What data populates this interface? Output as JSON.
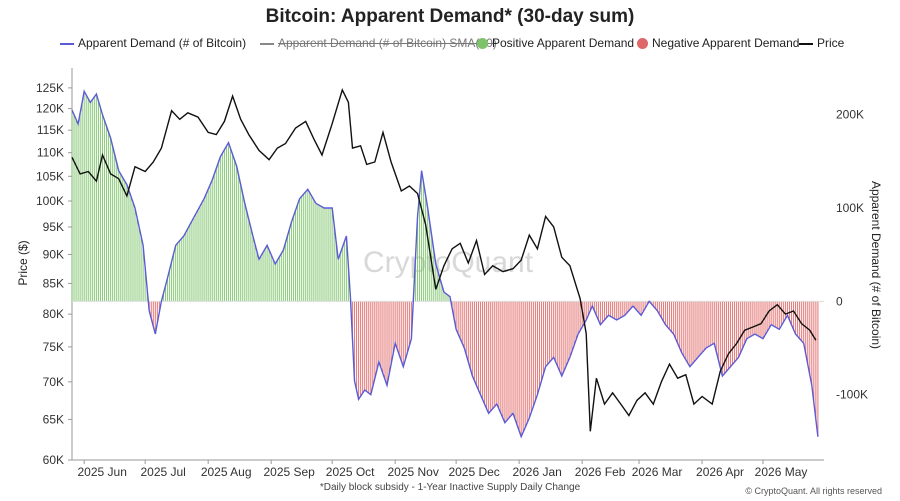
{
  "chart_data": {
    "type": "line",
    "title": "Bitcoin: Apparent Demand* (30-day sum)",
    "footnote": "*Daily block subsidy - 1-Year Inactive Supply Daily Change",
    "copyright": "© CryptoQuant. All rights reserved",
    "watermark": "CryptoQuant",
    "legend": [
      {
        "label": "Apparent Demand (# of Bitcoin)",
        "color": "#5b5bd6",
        "style": "line"
      },
      {
        "label": "Apparent Demand (# of Bitcoin) SMA(30)",
        "color": "#888888",
        "style": "line-disabled"
      },
      {
        "label": "Positive Apparent Demand",
        "color": "#7cc36a",
        "style": "dot"
      },
      {
        "label": "Negative Apparent Demand",
        "color": "#e06767",
        "style": "dot"
      },
      {
        "label": "Price",
        "color": "#111111",
        "style": "line"
      }
    ],
    "left_axis": {
      "label": "Price ($)",
      "scale": "log",
      "range": [
        60000,
        130000
      ],
      "ticks": [
        60000,
        65000,
        70000,
        75000,
        80000,
        85000,
        90000,
        95000,
        100000,
        105000,
        110000,
        115000,
        120000,
        125000
      ],
      "tick_labels": [
        "60K",
        "65K",
        "70K",
        "75K",
        "80K",
        "85K",
        "90K",
        "95K",
        "100K",
        "105K",
        "110K",
        "115K",
        "120K",
        "125K"
      ]
    },
    "right_axis": {
      "label": "Apparent Demand (# of Bitcoin)",
      "range": [
        -170000,
        250000
      ],
      "ticks": [
        -100000,
        0,
        100000,
        200000
      ],
      "tick_labels": [
        "-100K",
        "0",
        "100K",
        "200K"
      ]
    },
    "x_axis": {
      "range": [
        "2025-05-26",
        "2026-05-31"
      ],
      "ticks": [
        "2025-06-01",
        "2025-07-01",
        "2025-08-01",
        "2025-09-01",
        "2025-10-01",
        "2025-11-01",
        "2025-12-01",
        "2026-01-01",
        "2026-02-01",
        "2026-03-01",
        "2026-04-01",
        "2026-05-01"
      ],
      "tick_labels": [
        "2025 Jun",
        "2025 Jul",
        "2025 Aug",
        "2025 Sep",
        "2025 Oct",
        "2025 Nov",
        "2025 Dec",
        "2026 Jan",
        "2026 Feb",
        "2026 Mar",
        "2026 Apr",
        "2026 May"
      ]
    },
    "series": [
      {
        "name": "Price",
        "axis": "left",
        "color": "#111111",
        "points": [
          [
            "2025-05-26",
            109000
          ],
          [
            "2025-05-30",
            105500
          ],
          [
            "2025-06-03",
            106000
          ],
          [
            "2025-06-07",
            104000
          ],
          [
            "2025-06-10",
            109500
          ],
          [
            "2025-06-14",
            105500
          ],
          [
            "2025-06-18",
            104500
          ],
          [
            "2025-06-22",
            101000
          ],
          [
            "2025-06-26",
            107000
          ],
          [
            "2025-07-01",
            106000
          ],
          [
            "2025-07-05",
            108000
          ],
          [
            "2025-07-09",
            111000
          ],
          [
            "2025-07-14",
            119500
          ],
          [
            "2025-07-18",
            117500
          ],
          [
            "2025-07-22",
            119000
          ],
          [
            "2025-07-27",
            118000
          ],
          [
            "2025-08-01",
            114500
          ],
          [
            "2025-08-05",
            114000
          ],
          [
            "2025-08-09",
            117000
          ],
          [
            "2025-08-13",
            123000
          ],
          [
            "2025-08-17",
            117500
          ],
          [
            "2025-08-21",
            114000
          ],
          [
            "2025-08-26",
            110500
          ],
          [
            "2025-08-31",
            108500
          ],
          [
            "2025-09-04",
            111000
          ],
          [
            "2025-09-08",
            112000
          ],
          [
            "2025-09-13",
            115500
          ],
          [
            "2025-09-18",
            117000
          ],
          [
            "2025-09-22",
            113000
          ],
          [
            "2025-09-26",
            109500
          ],
          [
            "2025-10-01",
            116500
          ],
          [
            "2025-10-06",
            124500
          ],
          [
            "2025-10-09",
            121500
          ],
          [
            "2025-10-11",
            111000
          ],
          [
            "2025-10-15",
            111500
          ],
          [
            "2025-10-18",
            107500
          ],
          [
            "2025-10-22",
            108000
          ],
          [
            "2025-10-26",
            114500
          ],
          [
            "2025-10-30",
            108000
          ],
          [
            "2025-11-04",
            102000
          ],
          [
            "2025-11-08",
            103000
          ],
          [
            "2025-11-12",
            101500
          ],
          [
            "2025-11-16",
            95500
          ],
          [
            "2025-11-21",
            84000
          ],
          [
            "2025-11-25",
            88000
          ],
          [
            "2025-11-29",
            91000
          ],
          [
            "2025-12-03",
            92000
          ],
          [
            "2025-12-07",
            88500
          ],
          [
            "2025-12-11",
            92500
          ],
          [
            "2025-12-15",
            86500
          ],
          [
            "2025-12-19",
            88000
          ],
          [
            "2025-12-24",
            87000
          ],
          [
            "2025-12-29",
            87500
          ],
          [
            "2026-01-02",
            89000
          ],
          [
            "2026-01-06",
            93500
          ],
          [
            "2026-01-10",
            91000
          ],
          [
            "2026-01-14",
            97000
          ],
          [
            "2026-01-18",
            95000
          ],
          [
            "2026-01-22",
            89500
          ],
          [
            "2026-01-26",
            88000
          ],
          [
            "2026-01-31",
            82500
          ],
          [
            "2026-02-03",
            77000
          ],
          [
            "2026-02-05",
            63500
          ],
          [
            "2026-02-08",
            70500
          ],
          [
            "2026-02-12",
            67000
          ],
          [
            "2026-02-16",
            68500
          ],
          [
            "2026-02-20",
            67000
          ],
          [
            "2026-02-24",
            65500
          ],
          [
            "2026-02-28",
            67500
          ],
          [
            "2026-03-04",
            68500
          ],
          [
            "2026-03-08",
            67000
          ],
          [
            "2026-03-12",
            70000
          ],
          [
            "2026-03-16",
            72500
          ],
          [
            "2026-03-20",
            70500
          ],
          [
            "2026-03-24",
            71000
          ],
          [
            "2026-03-28",
            67000
          ],
          [
            "2026-04-01",
            68000
          ],
          [
            "2026-04-06",
            67000
          ],
          [
            "2026-04-10",
            71500
          ],
          [
            "2026-04-14",
            74000
          ],
          [
            "2026-04-18",
            75500
          ],
          [
            "2026-04-22",
            77500
          ],
          [
            "2026-04-26",
            78000
          ],
          [
            "2026-04-30",
            78500
          ],
          [
            "2026-05-04",
            80500
          ],
          [
            "2026-05-08",
            81500
          ],
          [
            "2026-05-12",
            80000
          ],
          [
            "2026-05-16",
            80500
          ],
          [
            "2026-05-20",
            78500
          ],
          [
            "2026-05-24",
            77500
          ],
          [
            "2026-05-27",
            76000
          ]
        ]
      },
      {
        "name": "Apparent Demand (# of Bitcoin)",
        "axis": "right",
        "color": "#5b5bd6",
        "points": [
          [
            "2025-05-26",
            205000
          ],
          [
            "2025-05-29",
            190000
          ],
          [
            "2025-06-01",
            225000
          ],
          [
            "2025-06-04",
            213000
          ],
          [
            "2025-06-07",
            222000
          ],
          [
            "2025-06-10",
            200000
          ],
          [
            "2025-06-14",
            175000
          ],
          [
            "2025-06-18",
            140000
          ],
          [
            "2025-06-22",
            125000
          ],
          [
            "2025-06-26",
            100000
          ],
          [
            "2025-06-30",
            60000
          ],
          [
            "2025-07-03",
            -10000
          ],
          [
            "2025-07-06",
            -35000
          ],
          [
            "2025-07-09",
            0
          ],
          [
            "2025-07-12",
            25000
          ],
          [
            "2025-07-16",
            60000
          ],
          [
            "2025-07-20",
            70000
          ],
          [
            "2025-07-25",
            90000
          ],
          [
            "2025-07-30",
            110000
          ],
          [
            "2025-08-03",
            130000
          ],
          [
            "2025-08-07",
            155000
          ],
          [
            "2025-08-11",
            170000
          ],
          [
            "2025-08-15",
            145000
          ],
          [
            "2025-08-19",
            105000
          ],
          [
            "2025-08-23",
            70000
          ],
          [
            "2025-08-26",
            45000
          ],
          [
            "2025-08-30",
            60000
          ],
          [
            "2025-09-03",
            40000
          ],
          [
            "2025-09-07",
            55000
          ],
          [
            "2025-09-11",
            85000
          ],
          [
            "2025-09-15",
            110000
          ],
          [
            "2025-09-19",
            120000
          ],
          [
            "2025-09-23",
            105000
          ],
          [
            "2025-09-27",
            100000
          ],
          [
            "2025-10-01",
            100000
          ],
          [
            "2025-10-04",
            45000
          ],
          [
            "2025-10-08",
            70000
          ],
          [
            "2025-10-10",
            5000
          ],
          [
            "2025-10-12",
            -85000
          ],
          [
            "2025-10-14",
            -105000
          ],
          [
            "2025-10-17",
            -95000
          ],
          [
            "2025-10-20",
            -100000
          ],
          [
            "2025-10-24",
            -65000
          ],
          [
            "2025-10-28",
            -90000
          ],
          [
            "2025-11-01",
            -45000
          ],
          [
            "2025-11-05",
            -70000
          ],
          [
            "2025-11-09",
            -40000
          ],
          [
            "2025-11-12",
            90000
          ],
          [
            "2025-11-14",
            140000
          ],
          [
            "2025-11-17",
            100000
          ],
          [
            "2025-11-21",
            40000
          ],
          [
            "2025-11-25",
            10000
          ],
          [
            "2025-11-28",
            5000
          ],
          [
            "2025-12-01",
            -30000
          ],
          [
            "2025-12-05",
            -50000
          ],
          [
            "2025-12-09",
            -80000
          ],
          [
            "2025-12-13",
            -100000
          ],
          [
            "2025-12-17",
            -120000
          ],
          [
            "2025-12-21",
            -110000
          ],
          [
            "2025-12-25",
            -130000
          ],
          [
            "2025-12-29",
            -120000
          ],
          [
            "2026-01-02",
            -145000
          ],
          [
            "2026-01-06",
            -125000
          ],
          [
            "2026-01-10",
            -100000
          ],
          [
            "2026-01-14",
            -70000
          ],
          [
            "2026-01-18",
            -60000
          ],
          [
            "2026-01-22",
            -80000
          ],
          [
            "2026-01-26",
            -60000
          ],
          [
            "2026-01-30",
            -35000
          ],
          [
            "2026-02-03",
            -20000
          ],
          [
            "2026-02-06",
            -5000
          ],
          [
            "2026-02-10",
            -25000
          ],
          [
            "2026-02-14",
            -15000
          ],
          [
            "2026-02-18",
            -20000
          ],
          [
            "2026-02-22",
            -15000
          ],
          [
            "2026-02-26",
            -5000
          ],
          [
            "2026-03-02",
            -15000
          ],
          [
            "2026-03-06",
            0
          ],
          [
            "2026-03-10",
            -10000
          ],
          [
            "2026-03-14",
            -25000
          ],
          [
            "2026-03-18",
            -35000
          ],
          [
            "2026-03-22",
            -55000
          ],
          [
            "2026-03-26",
            -70000
          ],
          [
            "2026-03-30",
            -60000
          ],
          [
            "2026-04-03",
            -50000
          ],
          [
            "2026-04-07",
            -45000
          ],
          [
            "2026-04-11",
            -80000
          ],
          [
            "2026-04-15",
            -70000
          ],
          [
            "2026-04-19",
            -60000
          ],
          [
            "2026-04-23",
            -40000
          ],
          [
            "2026-04-27",
            -35000
          ],
          [
            "2026-05-01",
            -40000
          ],
          [
            "2026-05-05",
            -25000
          ],
          [
            "2026-05-09",
            -30000
          ],
          [
            "2026-05-13",
            -15000
          ],
          [
            "2026-05-17",
            -35000
          ],
          [
            "2026-05-21",
            -45000
          ],
          [
            "2026-05-25",
            -90000
          ],
          [
            "2026-05-28",
            -145000
          ]
        ]
      }
    ]
  }
}
